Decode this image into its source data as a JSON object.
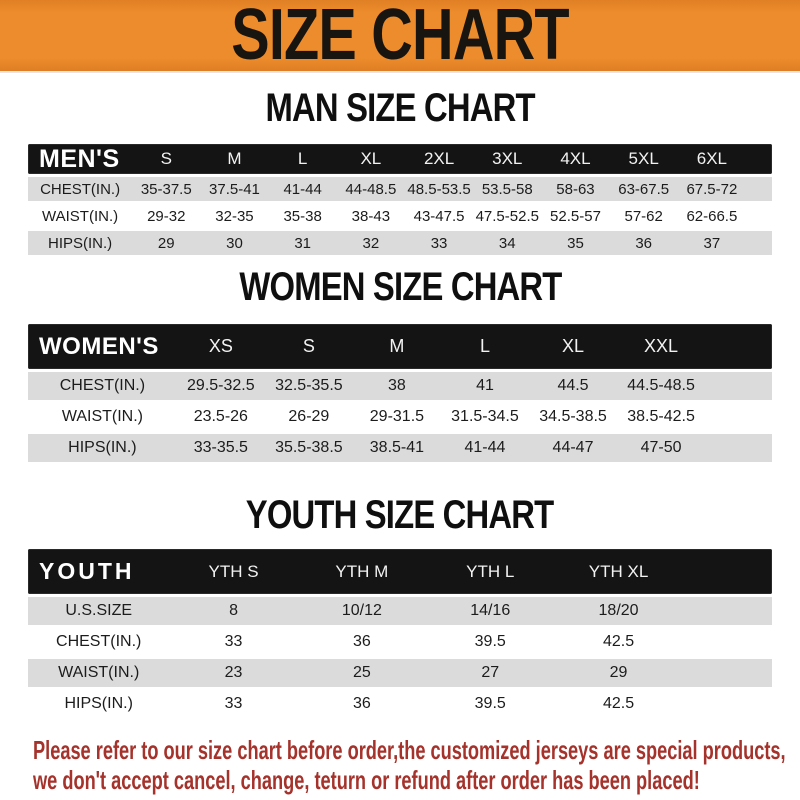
{
  "banner": {
    "title": "SIZE CHART",
    "bg_color": "#EC8C2C",
    "text_color": "#181511"
  },
  "sections": [
    {
      "heading": "MAN SIZE CHART",
      "table": {
        "label": "MEN'S",
        "columns": [
          "S",
          "M",
          "L",
          "XL",
          "2XL",
          "3XL",
          "4XL",
          "5XL",
          "6XL"
        ],
        "rows": [
          {
            "label": "CHEST(IN.)",
            "values": [
              "35-37.5",
              "37.5-41",
              "41-44",
              "44-48.5",
              "48.5-53.5",
              "53.5-58",
              "58-63",
              "63-67.5",
              "67.5-72"
            ]
          },
          {
            "label": "WAIST(IN.)",
            "values": [
              "29-32",
              "32-35",
              "35-38",
              "38-43",
              "43-47.5",
              "47.5-52.5",
              "52.5-57",
              "57-62",
              "62-66.5"
            ]
          },
          {
            "label": "HIPS(IN.)",
            "values": [
              "29",
              "30",
              "31",
              "32",
              "33",
              "34",
              "35",
              "36",
              "37"
            ]
          }
        ]
      }
    },
    {
      "heading": "WOMEN SIZE CHART",
      "table": {
        "label": "WOMEN'S",
        "columns": [
          "XS",
          "S",
          "M",
          "L",
          "XL",
          "XXL"
        ],
        "rows": [
          {
            "label": "CHEST(IN.)",
            "values": [
              "29.5-32.5",
              "32.5-35.5",
              "38",
              "41",
              "44.5",
              "44.5-48.5"
            ]
          },
          {
            "label": "WAIST(IN.)",
            "values": [
              "23.5-26",
              "26-29",
              "29-31.5",
              "31.5-34.5",
              "34.5-38.5",
              "38.5-42.5"
            ]
          },
          {
            "label": "HIPS(IN.)",
            "values": [
              "33-35.5",
              "35.5-38.5",
              "38.5-41",
              "41-44",
              "44-47",
              "47-50"
            ]
          }
        ]
      }
    },
    {
      "heading": "YOUTH SIZE CHART",
      "table": {
        "label": "YOUTH",
        "columns": [
          "YTH S",
          "YTH M",
          "YTH L",
          "YTH XL"
        ],
        "rows": [
          {
            "label": "U.S.SIZE",
            "values": [
              "8",
              "10/12",
              "14/16",
              "18/20"
            ]
          },
          {
            "label": "CHEST(IN.)",
            "values": [
              "33",
              "36",
              "39.5",
              "42.5"
            ]
          },
          {
            "label": "WAIST(IN.)",
            "values": [
              "23",
              "25",
              "27",
              "29"
            ]
          },
          {
            "label": "HIPS(IN.)",
            "values": [
              "33",
              "36",
              "39.5",
              "42.5"
            ]
          }
        ]
      }
    }
  ],
  "footer": {
    "line1": "Please refer to our size chart before order,the customized jerseys are special products,",
    "line2": "we don't accept cancel, change, teturn or refund after order has been placed!",
    "text_color": "#A5332C"
  },
  "row_colors": {
    "stripe_gray": "#DBDBDB",
    "stripe_white": "#FFFFFF",
    "header_black": "#141414"
  }
}
